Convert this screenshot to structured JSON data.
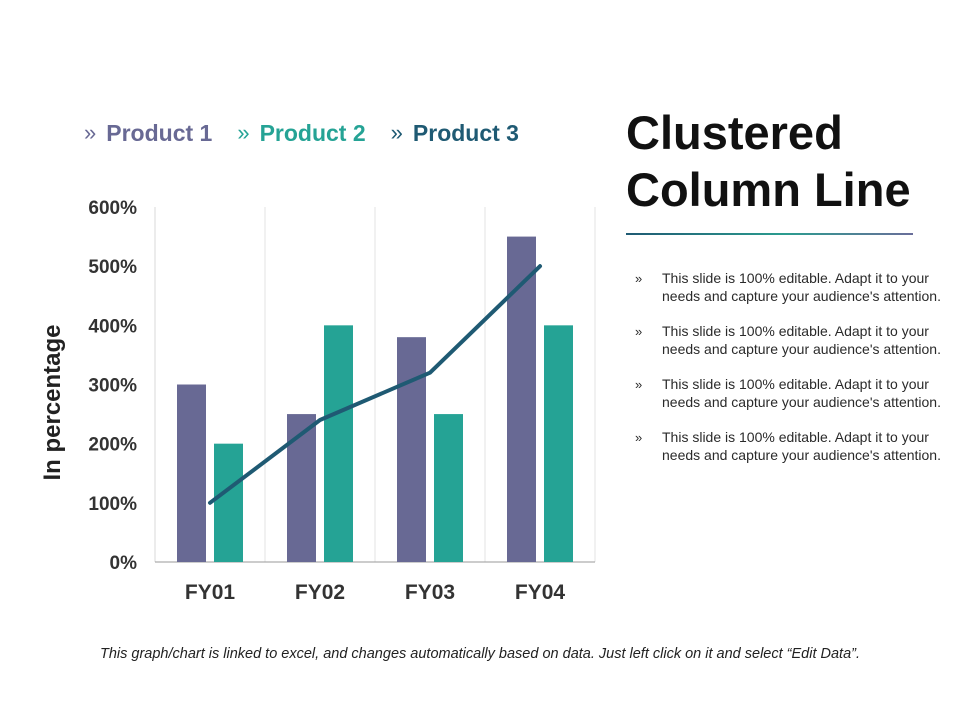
{
  "legend": [
    {
      "marker": "»",
      "label": "Product 1",
      "color": "#686994"
    },
    {
      "marker": "»",
      "label": "Product 2",
      "color": "#25a395"
    },
    {
      "marker": "»",
      "label": "Product 3",
      "color": "#1f5a73"
    }
  ],
  "title": {
    "line1": "Clustered",
    "line2": "Column Line"
  },
  "bullets": [
    {
      "marker": "»",
      "text": "This slide is 100% editable. Adapt it to your needs and capture your audience's attention."
    },
    {
      "marker": "»",
      "text": "This slide is 100% editable. Adapt it to your needs and capture your audience's attention."
    },
    {
      "marker": "»",
      "text": "This slide is 100% editable. Adapt it to your needs and capture your audience's attention."
    },
    {
      "marker": "»",
      "text": "This slide is 100% editable. Adapt it to your needs and capture your audience's attention."
    }
  ],
  "footer": "This graph/chart is linked to excel, and changes automatically based on data. Just left click on it and select “Edit Data”.",
  "chart_data": {
    "type": "bar",
    "categories": [
      "FY01",
      "FY02",
      "FY03",
      "FY04"
    ],
    "series": [
      {
        "name": "Product 1",
        "kind": "bar",
        "color": "#686994",
        "values": [
          300,
          250,
          380,
          550
        ]
      },
      {
        "name": "Product 2",
        "kind": "bar",
        "color": "#25a395",
        "values": [
          200,
          400,
          250,
          400
        ]
      },
      {
        "name": "Product 3",
        "kind": "line",
        "color": "#1f5a73",
        "values": [
          100,
          240,
          320,
          500
        ]
      }
    ],
    "ylabel": "In percentage",
    "ylim": [
      0,
      600
    ],
    "yticks": [
      "0%",
      "100%",
      "200%",
      "300%",
      "400%",
      "500%",
      "600%"
    ],
    "ytick_values": [
      0,
      100,
      200,
      300,
      400,
      500,
      600
    ],
    "grid": "vertical",
    "legend": "top"
  }
}
